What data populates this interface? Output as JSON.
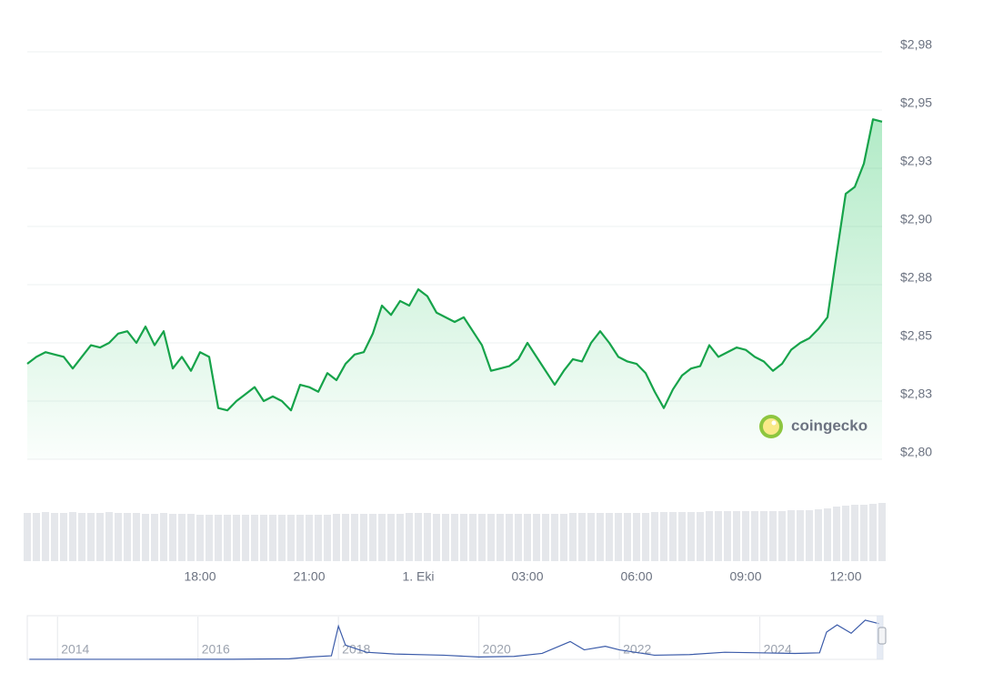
{
  "chart_data": {
    "type": "line",
    "categories": [
      null,
      null,
      null,
      null,
      null,
      null,
      null,
      null,
      null,
      null,
      null,
      null,
      null,
      null,
      null,
      null,
      null,
      null,
      null,
      "18:00",
      null,
      null,
      null,
      null,
      null,
      null,
      null,
      null,
      null,
      null,
      null,
      "21:00",
      null,
      null,
      null,
      null,
      null,
      null,
      null,
      null,
      null,
      null,
      null,
      "1. Eki",
      null,
      null,
      null,
      null,
      null,
      null,
      null,
      null,
      null,
      null,
      null,
      "03:00",
      null,
      null,
      null,
      null,
      null,
      null,
      null,
      null,
      null,
      null,
      null,
      "06:00",
      null,
      null,
      null,
      null,
      null,
      null,
      null,
      null,
      null,
      null,
      null,
      "09:00",
      null,
      null,
      null,
      null,
      null,
      null,
      null,
      null,
      null,
      null,
      "12:00",
      null,
      null,
      null,
      null
    ],
    "series": [
      {
        "color": "#16a34a",
        "values": [
          2.841,
          2.844,
          2.846,
          2.845,
          2.844,
          2.839,
          2.844,
          2.849,
          2.848,
          2.85,
          2.854,
          2.855,
          2.85,
          2.857,
          2.849,
          2.855,
          2.839,
          2.844,
          2.838,
          2.846,
          2.844,
          2.822,
          2.821,
          2.825,
          2.828,
          2.831,
          2.825,
          2.827,
          2.825,
          2.821,
          2.832,
          2.831,
          2.829,
          2.837,
          2.834,
          2.841,
          2.845,
          2.846,
          2.854,
          2.866,
          2.862,
          2.868,
          2.866,
          2.873,
          2.87,
          2.863,
          2.861,
          2.859,
          2.861,
          2.855,
          2.849,
          2.838,
          2.839,
          2.84,
          2.843,
          2.85,
          2.844,
          2.838,
          2.832,
          2.838,
          2.843,
          2.842,
          2.85,
          2.855,
          2.85,
          2.844,
          2.842,
          2.841,
          2.837,
          2.829,
          2.822,
          2.83,
          2.836,
          2.839,
          2.84,
          2.849,
          2.844,
          2.846,
          2.848,
          2.847,
          2.844,
          2.842,
          2.838,
          2.841,
          2.847,
          2.85,
          2.852,
          2.856,
          2.861,
          2.888,
          2.914,
          2.917,
          2.927,
          2.946,
          2.945
        ]
      }
    ],
    "ylim": [
      2.8,
      2.975
    ],
    "yticks": [
      {
        "value": 2.8,
        "label": "$2,80"
      },
      {
        "value": 2.825,
        "label": "$2,83"
      },
      {
        "value": 2.85,
        "label": "$2,85"
      },
      {
        "value": 2.875,
        "label": "$2,88"
      },
      {
        "value": 2.9,
        "label": "$2,90"
      },
      {
        "value": 2.925,
        "label": "$2,93"
      },
      {
        "value": 2.95,
        "label": "$2,95"
      },
      {
        "value": 2.975,
        "label": "$2,98"
      }
    ],
    "grid": true,
    "volume": {
      "type": "bar",
      "color": "#e5e7eb",
      "ylim": [
        0,
        70
      ],
      "values": [
        53,
        53,
        54,
        53,
        53,
        54,
        53,
        53,
        53,
        54,
        53,
        53,
        53,
        52,
        52,
        53,
        52,
        52,
        52,
        51,
        51,
        51,
        51,
        51,
        51,
        51,
        51,
        51,
        51,
        51,
        51,
        51,
        51,
        51,
        52,
        52,
        52,
        52,
        52,
        52,
        52,
        52,
        53,
        53,
        53,
        52,
        52,
        52,
        52,
        52,
        52,
        52,
        52,
        52,
        52,
        52,
        52,
        52,
        52,
        52,
        53,
        53,
        53,
        53,
        53,
        53,
        53,
        53,
        53,
        54,
        54,
        54,
        54,
        54,
        54,
        55,
        55,
        55,
        55,
        55,
        55,
        55,
        55,
        55,
        56,
        56,
        56,
        57,
        58,
        60,
        61,
        62,
        62,
        63,
        64
      ]
    },
    "navigator": {
      "type": "line",
      "color": "#3b5ba9",
      "xlim": [
        2013.57,
        2025.74
      ],
      "ylim": [
        0,
        3.6
      ],
      "xticks": [
        2014,
        2016,
        2018,
        2020,
        2022,
        2024
      ],
      "x": [
        2013.6,
        2015.0,
        2016.5,
        2017.3,
        2017.6,
        2017.9,
        2018.0,
        2018.1,
        2018.4,
        2018.8,
        2019.5,
        2020.0,
        2020.5,
        2020.9,
        2021.3,
        2021.5,
        2021.8,
        2022.0,
        2022.5,
        2023.0,
        2023.5,
        2024.0,
        2024.5,
        2024.85,
        2024.95,
        2025.1,
        2025.3,
        2025.5,
        2025.7
      ],
      "values": [
        0.005,
        0.006,
        0.007,
        0.05,
        0.2,
        0.3,
        2.8,
        1.2,
        0.6,
        0.45,
        0.35,
        0.2,
        0.25,
        0.5,
        1.5,
        0.8,
        1.1,
        0.8,
        0.35,
        0.4,
        0.6,
        0.55,
        0.5,
        0.55,
        2.3,
        2.9,
        2.2,
        3.3,
        3.0
      ]
    },
    "watermark": "coingecko"
  }
}
